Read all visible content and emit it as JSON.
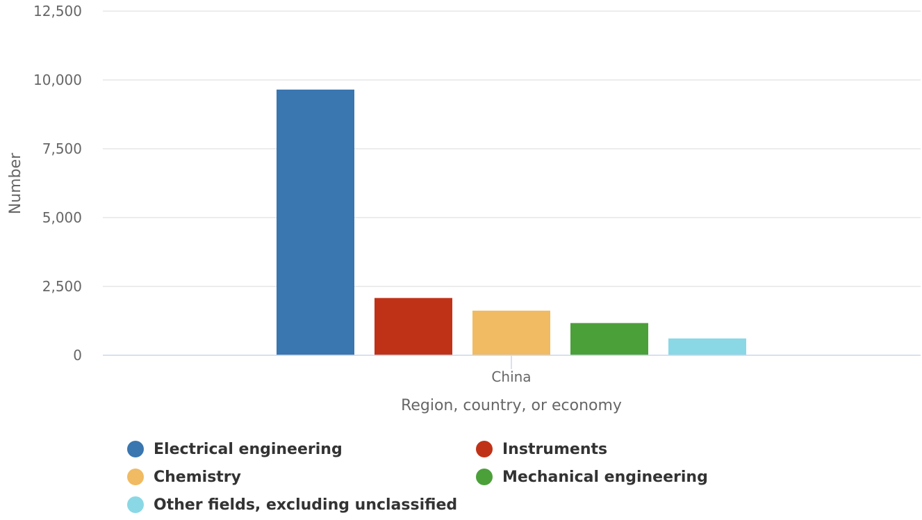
{
  "chart_data": {
    "type": "bar",
    "categories": [
      "China"
    ],
    "series": [
      {
        "name": "Electrical engineering",
        "values": [
          9650
        ],
        "color": "#3a76b0"
      },
      {
        "name": "Instruments",
        "values": [
          2080
        ],
        "color": "#c03218"
      },
      {
        "name": "Chemistry",
        "values": [
          1620
        ],
        "color": "#f0bb62"
      },
      {
        "name": "Mechanical engineering",
        "values": [
          1170
        ],
        "color": "#4ca03a"
      },
      {
        "name": "Other fields, excluding unclassified",
        "values": [
          610
        ],
        "color": "#8ad8e6"
      }
    ],
    "xlabel": "Region, country, or economy",
    "ylabel": "Number",
    "ylim": [
      0,
      12500
    ],
    "yticks": [
      0,
      2500,
      5000,
      7500,
      10000,
      12500
    ],
    "ytick_labels": [
      "0",
      "2,500",
      "5,000",
      "7,500",
      "10,000",
      "12,500"
    ],
    "grid": true,
    "legend_position": "bottom"
  }
}
